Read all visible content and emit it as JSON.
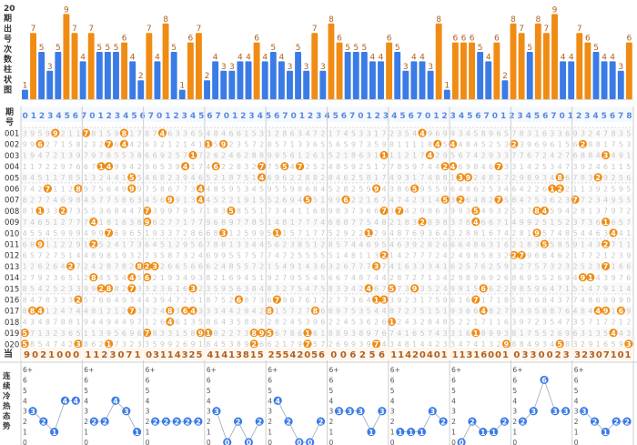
{
  "side_labels": {
    "chart": [
      "20",
      "期",
      "出",
      "号",
      "次",
      "数",
      "柱",
      "状",
      "图"
    ],
    "period": [
      "期",
      "号"
    ],
    "current": "当",
    "trend": "连续冷热态势"
  },
  "chart_data": {
    "type": "bar",
    "title": "20期出号次数柱状图",
    "ylim": [
      0,
      9
    ],
    "values": [
      1,
      7,
      5,
      3,
      5,
      9,
      7,
      4,
      7,
      5,
      5,
      5,
      6,
      4,
      2,
      7,
      4,
      8,
      5,
      1,
      6,
      7,
      2,
      4,
      3,
      3,
      4,
      4,
      6,
      4,
      5,
      4,
      3,
      5,
      3,
      7,
      3,
      8,
      6,
      5,
      5,
      5,
      4,
      4,
      6,
      5,
      3,
      4,
      4,
      3,
      8,
      1,
      6,
      6,
      6,
      5,
      4,
      6,
      2,
      8,
      7,
      5,
      8,
      7,
      9,
      4,
      4,
      7,
      6,
      5,
      4,
      4,
      3,
      6
    ]
  },
  "period_row": "0123456701234567012345670123456701234567012345670123456701234567012345678",
  "grid_rows": [
    "001",
    "002",
    "003",
    "004",
    "005",
    "006",
    "007",
    "008",
    "009",
    "010",
    "011",
    "012",
    "013",
    "014",
    "015",
    "016",
    "017",
    "018",
    "019",
    "020"
  ],
  "current_row": [
    "9021000",
    "1123071",
    "03114325",
    "41413815",
    "25542056",
    "006256",
    "11420401",
    "11316001",
    "0330023",
    "32307101"
  ],
  "trend_panels": [
    {
      "y_ticks": [
        "6+",
        "6",
        "5",
        "4",
        "3",
        "2",
        "1",
        "0"
      ],
      "values": [
        3,
        2,
        1,
        4,
        4
      ]
    },
    {
      "y_ticks": [
        "6+",
        "6",
        "5",
        "4",
        "3",
        "2",
        "1",
        "0"
      ],
      "values": [
        2,
        2,
        4,
        3,
        1
      ]
    },
    {
      "y_ticks": [
        "6+",
        "6",
        "5",
        "4",
        "3",
        "2",
        "1",
        "0"
      ],
      "values": [
        2,
        2,
        2,
        2,
        2
      ]
    },
    {
      "y_ticks": [
        "6+",
        "6",
        "5",
        "4",
        "3",
        "2",
        "1",
        "0"
      ],
      "values": [
        3,
        0,
        2,
        0,
        2
      ]
    },
    {
      "y_ticks": [
        "6+",
        "6",
        "5",
        "4",
        "3",
        "2",
        "1",
        "0"
      ],
      "values": [
        4,
        2,
        0,
        0,
        2
      ]
    },
    {
      "y_ticks": [
        "6+",
        "6",
        "5",
        "4",
        "3",
        "2",
        "1",
        "0"
      ],
      "values": [
        3,
        3,
        3,
        1,
        3
      ]
    },
    {
      "y_ticks": [
        "6+",
        "6",
        "5",
        "4",
        "3",
        "2",
        "1",
        "0"
      ],
      "values": [
        1,
        1,
        1,
        3,
        2
      ]
    },
    {
      "y_ticks": [
        "6+",
        "6",
        "5",
        "4",
        "3",
        "2",
        "1",
        "0"
      ],
      "values": [
        0,
        2,
        1,
        1,
        2
      ]
    },
    {
      "y_ticks": [
        "6+",
        "6",
        "5",
        "4",
        "3",
        "2",
        "1",
        "0"
      ],
      "values": [
        2,
        3,
        6,
        3,
        3
      ]
    },
    {
      "y_ticks": [
        "6+",
        "6",
        "5",
        "4",
        "3",
        "2",
        "1",
        "0"
      ],
      "values": [
        3,
        2,
        1,
        2,
        2
      ]
    }
  ],
  "colors": {
    "orange": "#f08c14",
    "blue": "#3a7be6",
    "label": "#b06020",
    "period": "#5a8ad8",
    "grid_text": "#c8c8c8",
    "grid_line": "#e4e4e4"
  }
}
